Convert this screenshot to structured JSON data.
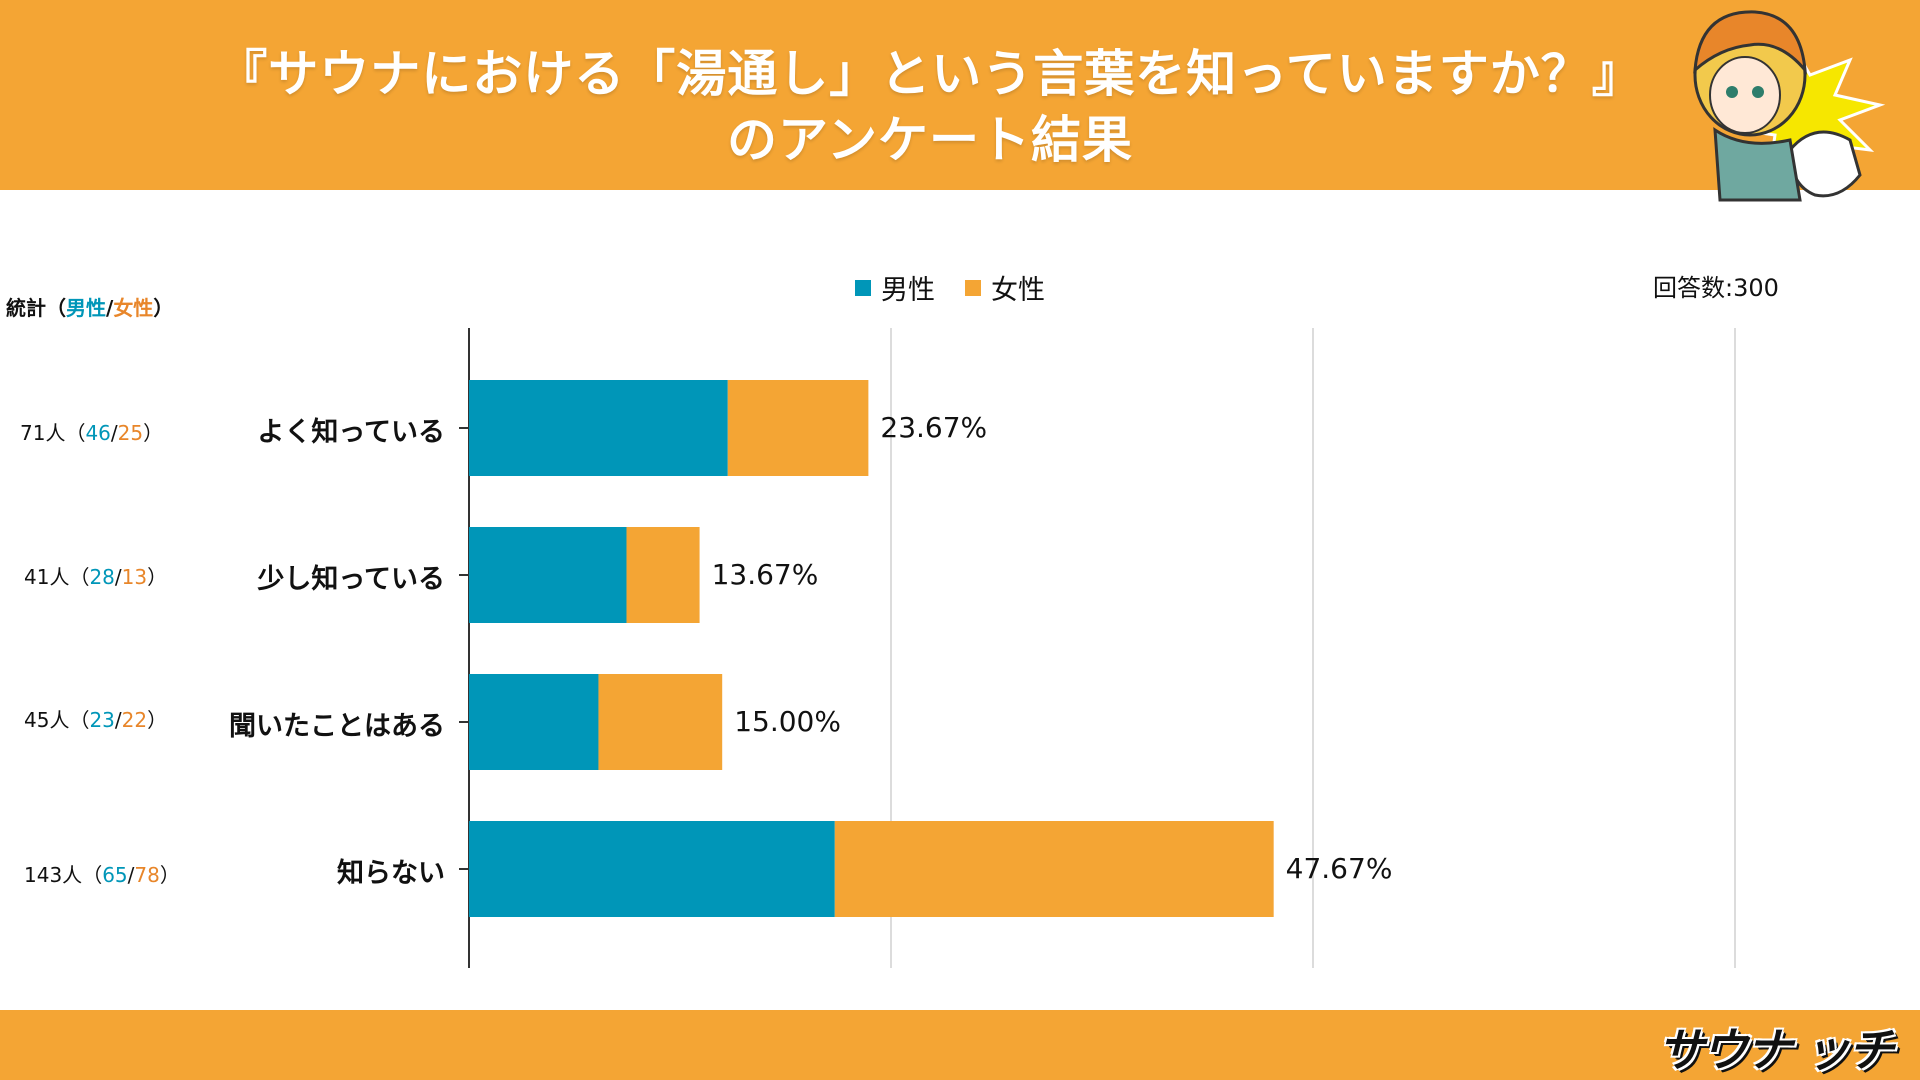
{
  "header": {
    "title_line1": "『サウナにおける「湯通し」という言葉を知っていますか？』",
    "title_line2": "のアンケート結果"
  },
  "legend": {
    "male": "男性",
    "female": "女性"
  },
  "respondents": "回答数:300",
  "stats_header": {
    "prefix": "統計（",
    "male": "男性",
    "sep": "/",
    "female": "女性",
    "suffix": "）"
  },
  "rows": [
    {
      "total": "71人",
      "male": "46",
      "female": "25"
    },
    {
      "total": "41人",
      "male": "28",
      "female": "13"
    },
    {
      "total": "45人",
      "male": "23",
      "female": "22"
    },
    {
      "total": "143人",
      "male": "65",
      "female": "78"
    }
  ],
  "logo": "サウナ ッチ",
  "colors": {
    "accent": "#F4A534",
    "male": "#0096B8",
    "female": "#F4A534"
  },
  "chart_data": {
    "type": "bar",
    "orientation": "horizontal",
    "stacked": true,
    "categories": [
      "よく知っている",
      "少し知っている",
      "聞いたことはある",
      "知らない"
    ],
    "series": [
      {
        "name": "男性",
        "values": [
          15.33,
          9.33,
          7.67,
          21.67
        ]
      },
      {
        "name": "女性",
        "values": [
          8.33,
          4.33,
          7.33,
          26.0
        ]
      }
    ],
    "data_labels": [
      "23.67%",
      "13.67%",
      "15.00%",
      "47.67%"
    ],
    "xlim": [
      0,
      100
    ],
    "grid": true,
    "legend": "top-center"
  }
}
